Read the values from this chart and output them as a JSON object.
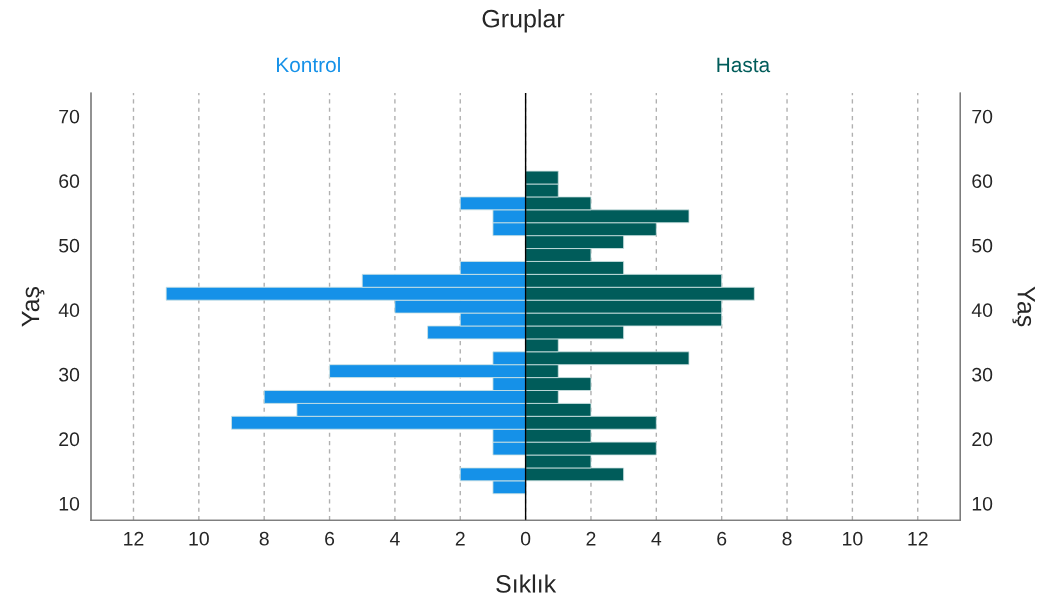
{
  "chart_data": {
    "type": "bar",
    "orientation": "horizontal",
    "title": "Gruplar",
    "xlabel": "Sıklık",
    "ylabel": "Yaş",
    "y2label": "Yaş",
    "x": [
      12.5,
      14.5,
      16.5,
      18.5,
      20.5,
      22.5,
      24.5,
      26.5,
      28.5,
      30.5,
      32.5,
      34.5,
      36.5,
      38.5,
      40.5,
      42.5,
      44.5,
      46.5,
      48.5,
      50.5,
      52.5,
      54.5,
      56.5,
      58.5,
      60.5
    ],
    "series": [
      {
        "name": "Kontrol",
        "color": "#1591e8",
        "values": [
          -1,
          -2,
          0,
          -1,
          -1,
          -9,
          -7,
          -8,
          -1,
          -6,
          -1,
          0,
          -3,
          -2,
          -4,
          -11,
          -5,
          -2,
          0,
          0,
          -1,
          -1,
          -2,
          0,
          0
        ]
      },
      {
        "name": "Hasta",
        "color": "#005c5a",
        "values": [
          0,
          3,
          2,
          4,
          2,
          4,
          2,
          1,
          2,
          1,
          5,
          1,
          3,
          6,
          6,
          7,
          6,
          3,
          2,
          3,
          4,
          5,
          2,
          1,
          1
        ]
      }
    ],
    "xlim": [
      -13.3,
      13.3
    ],
    "xticks": [
      {
        "value": -12,
        "label": "12"
      },
      {
        "value": -10,
        "label": "10"
      },
      {
        "value": -8,
        "label": "8"
      },
      {
        "value": -6,
        "label": "6"
      },
      {
        "value": -4,
        "label": "4"
      },
      {
        "value": -2,
        "label": "2"
      },
      0,
      2,
      4,
      6,
      8,
      10,
      12
    ],
    "ylim": [
      7.4,
      73.6
    ],
    "yticks": [
      10,
      20,
      30,
      40,
      50,
      60,
      70
    ],
    "y2lim": [
      7.4,
      73.6
    ],
    "y2ticks": [
      10,
      20,
      30,
      40,
      50,
      60,
      70
    ],
    "grid": "x",
    "legend": "top",
    "stacked": true
  }
}
